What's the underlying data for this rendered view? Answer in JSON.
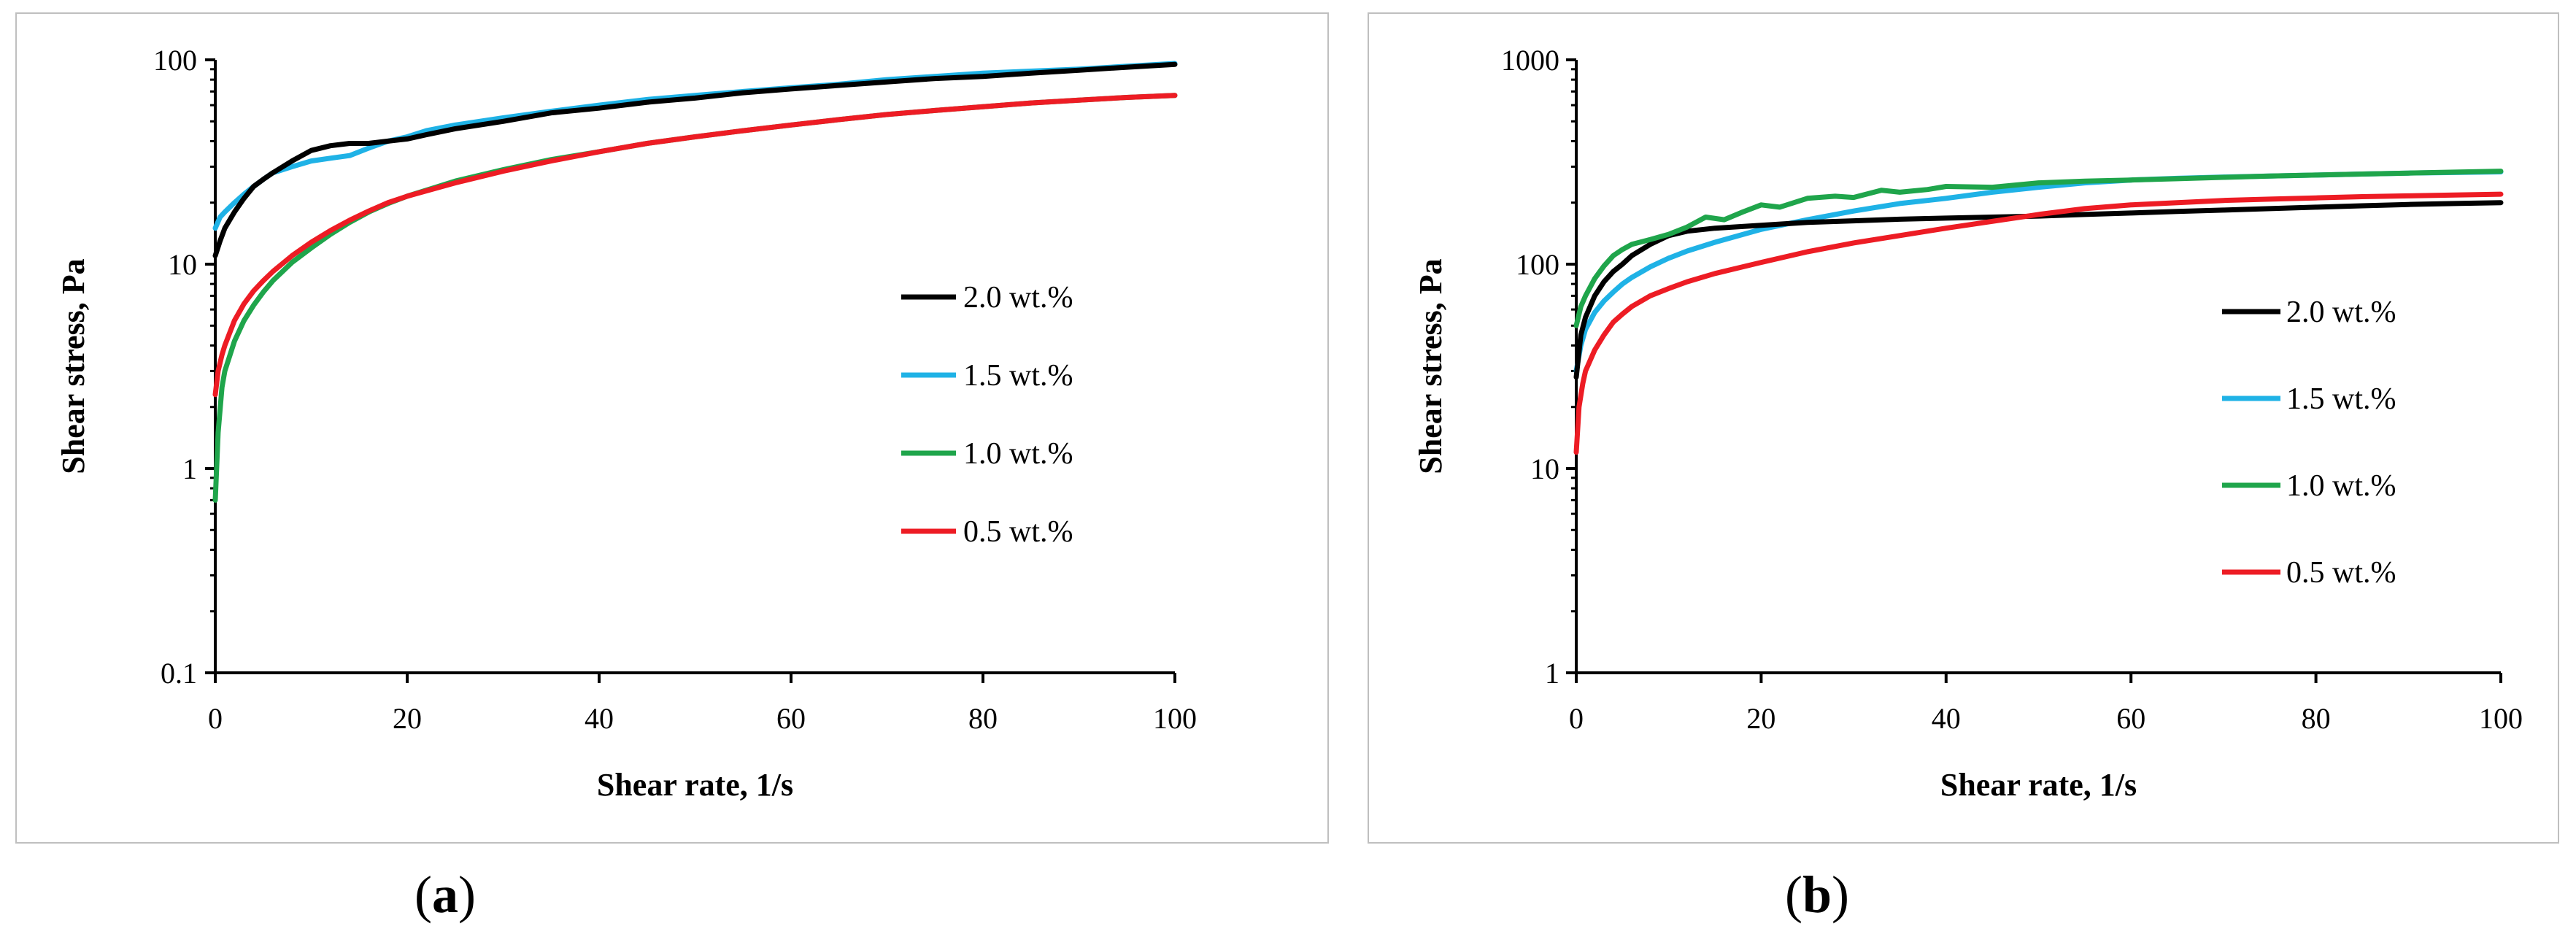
{
  "chart_data": [
    {
      "panel": "(a)",
      "type": "line",
      "yscale": "log",
      "xlabel": "Shear rate, 1/s",
      "ylabel": "Shear stress, Pa",
      "xlim": [
        0,
        100
      ],
      "ylim": [
        0.1,
        100
      ],
      "xticks": [
        0,
        20,
        40,
        60,
        80,
        100
      ],
      "yticks": [
        0.1,
        1,
        10,
        100
      ],
      "ytick_labels": [
        "0.1",
        "1",
        "10",
        "100"
      ],
      "legend_position": "right",
      "series": [
        {
          "name": "2.0 wt.%",
          "color": "#000000",
          "x": [
            0,
            0.5,
            1,
            2,
            3,
            4,
            5,
            6,
            8,
            10,
            12,
            14,
            16,
            18,
            20,
            22,
            25,
            30,
            35,
            40,
            45,
            50,
            55,
            60,
            65,
            70,
            75,
            80,
            85,
            90,
            95,
            100
          ],
          "y": [
            11,
            13,
            15,
            18,
            21,
            24,
            26,
            28,
            32,
            36,
            38,
            39,
            39,
            40,
            41,
            43,
            46,
            50,
            55,
            58,
            62,
            65,
            69,
            72,
            75,
            78,
            81,
            83,
            86,
            89,
            92,
            95
          ]
        },
        {
          "name": "1.5 wt.%",
          "color": "#1fb2e6",
          "x": [
            0,
            0.5,
            1,
            2,
            3,
            4,
            5,
            6,
            8,
            10,
            12,
            14,
            16,
            18,
            20,
            22,
            25,
            30,
            35,
            40,
            45,
            50,
            55,
            60,
            65,
            70,
            75,
            80,
            85,
            90,
            95,
            100
          ],
          "y": [
            15,
            17,
            18,
            20,
            22,
            24,
            26,
            28,
            30,
            32,
            33,
            34,
            37,
            40,
            42,
            45,
            48,
            52,
            56,
            60,
            64,
            67,
            70,
            73,
            76,
            80,
            83,
            86,
            88,
            90,
            93,
            96
          ]
        },
        {
          "name": "1.0 wt.%",
          "color": "#1fa54b",
          "x": [
            0,
            0.3,
            0.7,
            1,
            2,
            3,
            4,
            5,
            6,
            8,
            10,
            12,
            14,
            16,
            18,
            20,
            25,
            30,
            35,
            40,
            45,
            50,
            55,
            60,
            65,
            70,
            75,
            80,
            85,
            90,
            95,
            100
          ],
          "y": [
            0.7,
            1.5,
            2.5,
            3,
            4.2,
            5.3,
            6.3,
            7.3,
            8.3,
            10.2,
            12,
            14,
            16,
            18,
            19.8,
            21.5,
            25.5,
            29,
            32.5,
            35.5,
            39,
            42,
            45,
            48,
            51,
            54,
            56.5,
            59,
            61.5,
            63.5,
            65.5,
            67
          ]
        },
        {
          "name": "0.5 wt.%",
          "color": "#ed1c24",
          "x": [
            0,
            0.3,
            0.7,
            1,
            2,
            3,
            4,
            5,
            6,
            8,
            10,
            12,
            14,
            16,
            18,
            20,
            25,
            30,
            35,
            40,
            45,
            50,
            55,
            60,
            65,
            70,
            75,
            80,
            85,
            90,
            95,
            100
          ],
          "y": [
            2.3,
            3,
            3.6,
            4,
            5.3,
            6.4,
            7.4,
            8.3,
            9.2,
            11,
            12.8,
            14.6,
            16.4,
            18.2,
            20,
            21.5,
            25,
            28.5,
            32,
            35.5,
            39,
            42,
            45,
            48,
            51,
            54,
            56.5,
            59,
            61.5,
            63.5,
            65.5,
            67
          ]
        }
      ]
    },
    {
      "panel": "(b)",
      "type": "line",
      "yscale": "log",
      "xlabel": "Shear rate, 1/s",
      "ylabel": "Shear stress, Pa",
      "xlim": [
        0,
        100
      ],
      "ylim": [
        1,
        1000
      ],
      "xticks": [
        0,
        20,
        40,
        60,
        80,
        100
      ],
      "yticks": [
        1,
        10,
        100,
        1000
      ],
      "ytick_labels": [
        "1",
        "10",
        "100",
        "1000"
      ],
      "legend_position": "right",
      "series": [
        {
          "name": "2.0 wt.%",
          "color": "#000000",
          "x": [
            0,
            0.5,
            1,
            2,
            3,
            4,
            5,
            6,
            8,
            10,
            12,
            15,
            20,
            25,
            30,
            35,
            40,
            45,
            50,
            55,
            60,
            65,
            70,
            75,
            80,
            85,
            90,
            95,
            100
          ],
          "y": [
            28,
            45,
            55,
            70,
            82,
            92,
            100,
            110,
            125,
            138,
            145,
            150,
            155,
            160,
            163,
            166,
            168,
            170,
            172,
            175,
            178,
            181,
            184,
            187,
            190,
            193,
            196,
            198,
            200
          ]
        },
        {
          "name": "1.5 wt.%",
          "color": "#1fb2e6",
          "x": [
            0,
            0.5,
            1,
            2,
            3,
            4,
            5,
            6,
            8,
            10,
            12,
            15,
            20,
            25,
            30,
            35,
            40,
            45,
            50,
            55,
            60,
            65,
            70,
            75,
            80,
            85,
            90,
            95,
            100
          ],
          "y": [
            30,
            40,
            48,
            58,
            66,
            73,
            80,
            86,
            97,
            107,
            116,
            128,
            148,
            165,
            182,
            198,
            210,
            225,
            238,
            250,
            258,
            263,
            267,
            270,
            273,
            276,
            279,
            281,
            283
          ]
        },
        {
          "name": "1.0 wt.%",
          "color": "#1fa54b",
          "x": [
            0,
            0.5,
            1,
            2,
            3,
            4,
            5,
            6,
            8,
            10,
            12,
            14,
            16,
            18,
            20,
            22,
            25,
            28,
            30,
            33,
            35,
            38,
            40,
            45,
            50,
            55,
            60,
            65,
            70,
            75,
            80,
            85,
            90,
            95,
            100
          ],
          "y": [
            50,
            62,
            70,
            85,
            98,
            110,
            118,
            125,
            132,
            140,
            152,
            170,
            165,
            180,
            195,
            190,
            210,
            215,
            212,
            230,
            225,
            232,
            240,
            238,
            250,
            255,
            258,
            262,
            266,
            270,
            273,
            276,
            279,
            282,
            285
          ]
        },
        {
          "name": "0.5 wt.%",
          "color": "#ed1c24",
          "x": [
            0,
            0.3,
            0.7,
            1,
            2,
            3,
            4,
            5,
            6,
            8,
            10,
            12,
            15,
            20,
            25,
            30,
            35,
            40,
            45,
            50,
            55,
            60,
            65,
            70,
            75,
            80,
            85,
            90,
            95,
            100
          ],
          "y": [
            12,
            20,
            26,
            30,
            38,
            45,
            52,
            57,
            62,
            70,
            76,
            82,
            90,
            102,
            115,
            127,
            138,
            150,
            162,
            175,
            187,
            195,
            200,
            205,
            208,
            211,
            214,
            216,
            218,
            220
          ]
        }
      ]
    }
  ],
  "captions": {
    "a": {
      "open": "(",
      "letter": "a",
      "close": ")"
    },
    "b": {
      "open": "(",
      "letter": "b",
      "close": ")"
    }
  }
}
